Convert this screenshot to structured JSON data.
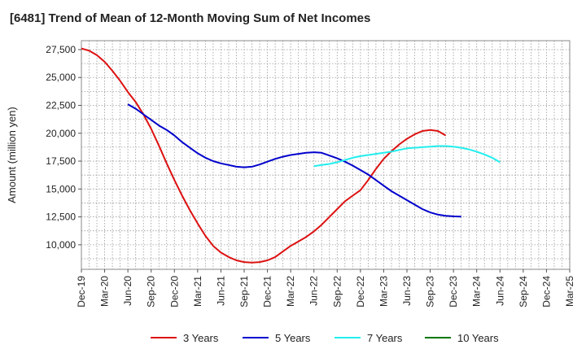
{
  "chart_data": {
    "type": "line",
    "title": "[6481]  Trend of Mean of 12-Month Moving Sum of Net Incomes",
    "ylabel": "Amount (million yen)",
    "xlabel": "",
    "x_ticks": [
      "Dec-19",
      "Mar-20",
      "Jun-20",
      "Sep-20",
      "Dec-20",
      "Mar-21",
      "Jun-21",
      "Sep-21",
      "Dec-21",
      "Mar-22",
      "Jun-22",
      "Sep-22",
      "Dec-22",
      "Mar-23",
      "Jun-23",
      "Sep-23",
      "Dec-23",
      "Mar-24",
      "Jun-24",
      "Sep-24",
      "Dec-24",
      "Mar-25"
    ],
    "y_ticks": [
      "10,000",
      "12,500",
      "15,000",
      "17,500",
      "20,000",
      "22,500",
      "25,000",
      "27,500"
    ],
    "y_tick_values": [
      10000,
      12500,
      15000,
      17500,
      20000,
      22500,
      25000,
      27500
    ],
    "ylim": [
      7800,
      28300
    ],
    "grid": true,
    "legend_position": "bottom",
    "series": [
      {
        "name": "3 Years",
        "color": "#dd1111",
        "start_index": 0,
        "values": [
          27600,
          27400,
          27000,
          26400,
          25600,
          24700,
          23700,
          22800,
          21700,
          20400,
          18900,
          17300,
          15800,
          14400,
          13100,
          11900,
          10800,
          9900,
          9300,
          8900,
          8600,
          8450,
          8400,
          8450,
          8600,
          8900,
          9400,
          9900,
          10300,
          10700,
          11200,
          11800,
          12500,
          13200,
          13900,
          14400,
          14900,
          15800,
          16800,
          17700,
          18400,
          19000,
          19500,
          19900,
          20200,
          20300,
          20200,
          19800
        ]
      },
      {
        "name": "5 Years",
        "color": "#0000cc",
        "start_index": 6,
        "values": [
          22600,
          22200,
          21700,
          21200,
          20700,
          20300,
          19800,
          19200,
          18700,
          18200,
          17800,
          17500,
          17300,
          17150,
          17000,
          16950,
          17000,
          17200,
          17450,
          17700,
          17900,
          18050,
          18150,
          18250,
          18300,
          18250,
          18000,
          17750,
          17450,
          17100,
          16700,
          16300,
          15800,
          15300,
          14800,
          14400,
          14000,
          13600,
          13200,
          12900,
          12700,
          12600,
          12550,
          12520
        ]
      },
      {
        "name": "7 Years",
        "color": "#22eeee",
        "start_index": 30,
        "values": [
          17050,
          17150,
          17250,
          17400,
          17600,
          17800,
          17950,
          18050,
          18150,
          18250,
          18350,
          18500,
          18650,
          18700,
          18750,
          18800,
          18850,
          18850,
          18800,
          18700,
          18550,
          18350,
          18100,
          17800,
          17400
        ]
      },
      {
        "name": "10 Years",
        "color": "#007700",
        "start_index": 0,
        "values": []
      }
    ]
  }
}
